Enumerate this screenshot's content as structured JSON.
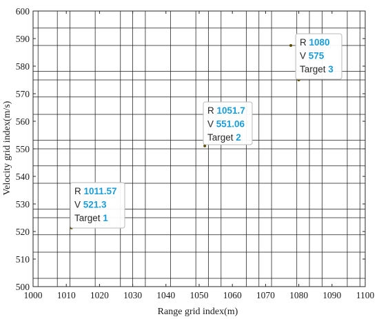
{
  "colors": {
    "background": "#ffffff",
    "axis": "#262626",
    "grid_line": "#1a1a1a",
    "marker": "#5a4a00",
    "tip_value": "#1a9cd8",
    "tip_border": "#b8b8b8"
  },
  "chart_data": {
    "type": "scatter",
    "xlabel": "Range grid index(m)",
    "ylabel": "Velocity grid index(m/s)",
    "xlim": [
      1000,
      1100
    ],
    "ylim": [
      500,
      600
    ],
    "xticks": [
      "1000",
      "1010",
      "1020",
      "1030",
      "1040",
      "1050",
      "1060",
      "1070",
      "1080",
      "1090",
      "1100"
    ],
    "yticks": [
      "500",
      "510",
      "520",
      "530",
      "540",
      "550",
      "560",
      "570",
      "580",
      "590",
      "600"
    ],
    "grid": true,
    "range_grid_lines": [
      1001.5,
      1007.3,
      1011.1,
      1018.7,
      1026.3,
      1030.0,
      1033.8,
      1041.4,
      1049.0,
      1052.8,
      1056.6,
      1064.2,
      1068.0,
      1071.8,
      1079.4,
      1083.2,
      1087.0,
      1094.6,
      1098.4
    ],
    "velocity_grid_lines": [
      503.0,
      512.5,
      518.8,
      525.0,
      528.1,
      537.5,
      543.8,
      550.0,
      553.1,
      562.5,
      568.8,
      575.0,
      578.1,
      587.5,
      593.8
    ],
    "points": [
      {
        "x": 1011.57,
        "y": 521.3
      },
      {
        "x": 1051.7,
        "y": 551.06
      },
      {
        "x": 1080,
        "y": 575
      },
      {
        "x": 1077.6,
        "y": 587.5
      }
    ],
    "datatips": [
      {
        "r_label": "R",
        "r_value": "1011.57",
        "v_label": "V",
        "v_value": "521.3",
        "t_label": "Target",
        "t_value": "1"
      },
      {
        "r_label": "R",
        "r_value": "1051.7",
        "v_label": "V",
        "v_value": "551.06",
        "t_label": "Target",
        "t_value": "2"
      },
      {
        "r_label": "R",
        "r_value": "1080",
        "v_label": "V",
        "v_value": "575",
        "t_label": "Target",
        "t_value": "3"
      }
    ]
  }
}
